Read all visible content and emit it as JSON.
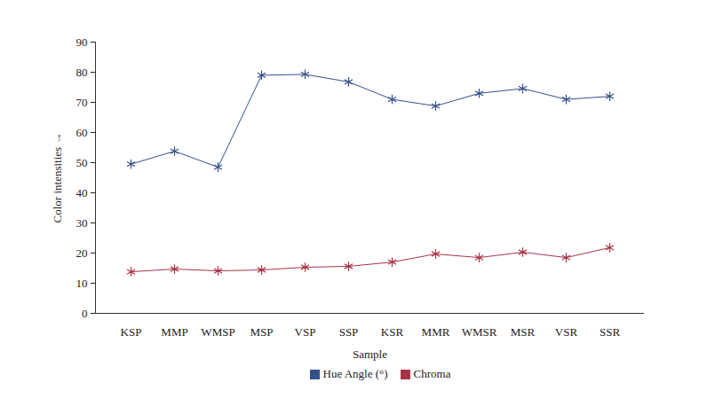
{
  "chart_data": {
    "type": "line",
    "x_label": "Sample",
    "y_label": "Color intensities",
    "categories": [
      "KSP",
      "MMP",
      "WMSP",
      "MSP",
      "VSP",
      "SSP",
      "KSR",
      "MMR",
      "WMSR",
      "MSR",
      "VSR",
      "SSR"
    ],
    "series": [
      {
        "name": "Hue Angle (°)",
        "color": "#34508a",
        "marker": "asterisk",
        "line_style": "solid",
        "values": [
          49.5,
          53.8,
          48.5,
          79,
          79.3,
          76.8,
          71,
          68.8,
          73,
          74.6,
          71,
          72
        ]
      },
      {
        "name": "Chroma",
        "color": "#a83448",
        "marker": "asterisk",
        "line_style": "solid",
        "values": [
          13.8,
          14.7,
          14.1,
          14.4,
          15.3,
          15.6,
          17,
          19.7,
          18.5,
          20.3,
          18.5,
          21.8
        ]
      }
    ],
    "ylim": [
      0,
      90
    ],
    "yticks": [
      0,
      10,
      20,
      30,
      40,
      50,
      60,
      70,
      80,
      90
    ],
    "grid": false,
    "legend": "bottom"
  }
}
